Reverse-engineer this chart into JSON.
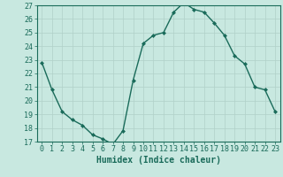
{
  "x": [
    0,
    1,
    2,
    3,
    4,
    5,
    6,
    7,
    8,
    9,
    10,
    11,
    12,
    13,
    14,
    15,
    16,
    17,
    18,
    19,
    20,
    21,
    22,
    23
  ],
  "y": [
    22.8,
    20.8,
    19.2,
    18.6,
    18.2,
    17.5,
    17.2,
    16.8,
    17.8,
    21.5,
    24.2,
    24.8,
    25.0,
    26.5,
    27.2,
    26.7,
    26.5,
    25.7,
    24.8,
    23.3,
    22.7,
    21.0,
    20.8,
    19.2
  ],
  "xlabel": "Humidex (Indice chaleur)",
  "ylim": [
    17,
    27
  ],
  "xlim_min": -0.5,
  "xlim_max": 23.5,
  "yticks": [
    17,
    18,
    19,
    20,
    21,
    22,
    23,
    24,
    25,
    26,
    27
  ],
  "xticks": [
    0,
    1,
    2,
    3,
    4,
    5,
    6,
    7,
    8,
    9,
    10,
    11,
    12,
    13,
    14,
    15,
    16,
    17,
    18,
    19,
    20,
    21,
    22,
    23
  ],
  "line_color": "#1a6b5a",
  "marker": "D",
  "marker_size": 2.0,
  "bg_color": "#c8e8e0",
  "grid_color": "#b0d0c8",
  "axis_color": "#1a6b5a",
  "xlabel_fontsize": 7,
  "tick_fontsize": 6,
  "linewidth": 1.0
}
